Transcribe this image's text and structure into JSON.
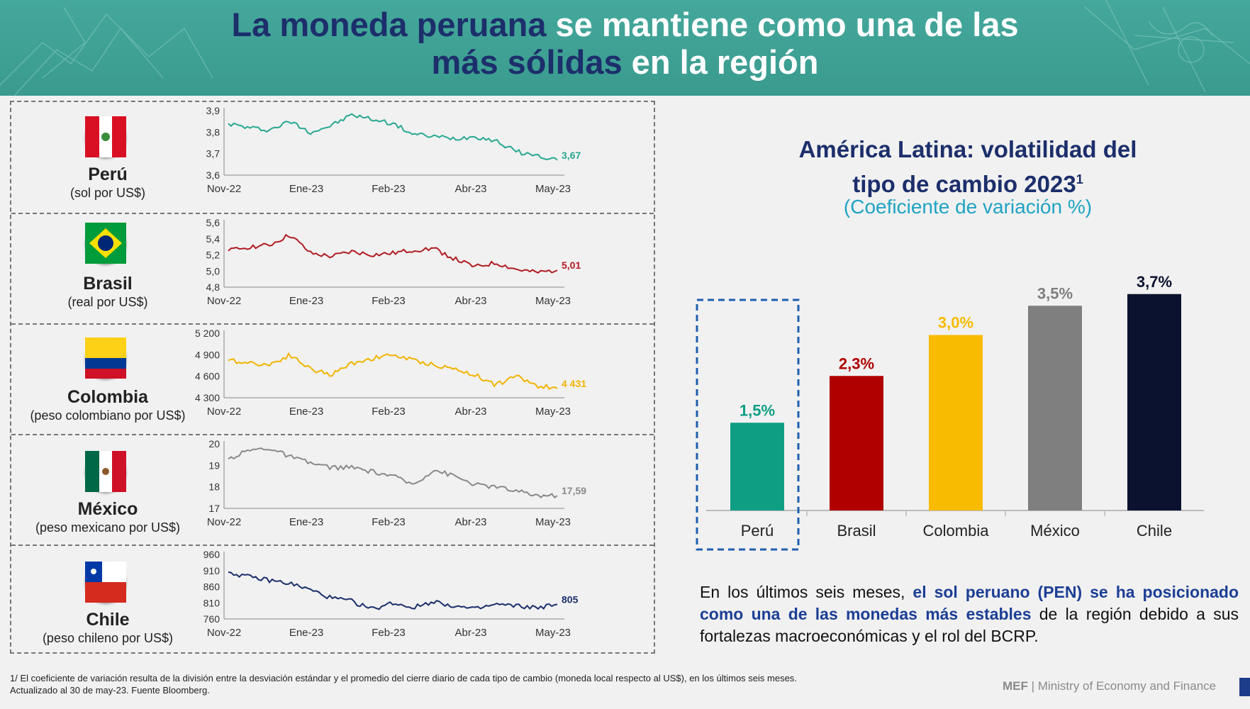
{
  "title": {
    "line1_dark": "La moneda peruana",
    "line1_light": " se mantiene como una de las",
    "line2_dark": "más sólidas",
    "line2_light": " en la región"
  },
  "countries": [
    {
      "name": "Perú",
      "unit": "(sol por US$)",
      "name_color": "#c00000",
      "line_color": "#2aa891",
      "label_color": "#2aa891",
      "flag": "peru-flag",
      "yticks": [
        "3,9",
        "3,8",
        "3,7",
        "3,6"
      ],
      "ytick_values": [
        3.9,
        3.8,
        3.7,
        3.6
      ],
      "xticks": [
        "Nov-22",
        "Ene-23",
        "Feb-23",
        "Abr-23",
        "May-23"
      ],
      "end_label": "3,67",
      "end_value": 3.67
    },
    {
      "name": "Brasil",
      "unit": "(real por US$)",
      "name_color": "#111111",
      "line_color": "#b01c22",
      "label_color": "#b01c22",
      "flag": "brazil-flag",
      "yticks": [
        "5,6",
        "5,4",
        "5,2",
        "5,0",
        "4,8"
      ],
      "ytick_values": [
        5.6,
        5.4,
        5.2,
        5.0,
        4.8
      ],
      "xticks": [
        "Nov-22",
        "Ene-23",
        "Feb-23",
        "Abr-23",
        "May-23"
      ],
      "end_label": "5,01",
      "end_value": 5.01
    },
    {
      "name": "Colombia",
      "unit": "(peso colombiano por US$)",
      "name_color": "#111111",
      "line_color": "#f0b400",
      "label_color": "#f0b400",
      "flag": "colombia-flag",
      "yticks": [
        "5 200",
        "4 900",
        "4 600",
        "4 300"
      ],
      "ytick_values": [
        5200,
        4900,
        4600,
        4300
      ],
      "xticks": [
        "Nov-22",
        "Ene-23",
        "Feb-23",
        "Abr-23",
        "May-23"
      ],
      "end_label": "4 431",
      "end_value": 4431
    },
    {
      "name": "México",
      "unit": "(peso mexicano por US$)",
      "name_color": "#111111",
      "line_color": "#8a8a8a",
      "label_color": "#8a8a8a",
      "flag": "mexico-flag",
      "yticks": [
        "20",
        "19",
        "18",
        "17"
      ],
      "ytick_values": [
        20,
        19,
        18,
        17
      ],
      "xticks": [
        "Nov-22",
        "Ene-23",
        "Feb-23",
        "Abr-23",
        "May-23"
      ],
      "end_label": "17,59",
      "end_value": 17.59
    },
    {
      "name": "Chile",
      "unit": "(peso chileno por US$)",
      "name_color": "#111111",
      "line_color": "#1c2f6b",
      "label_color": "#1c2f6b",
      "flag": "chile-flag",
      "yticks": [
        "960",
        "910",
        "860",
        "810",
        "760"
      ],
      "ytick_values": [
        960,
        910,
        860,
        810,
        760
      ],
      "xticks": [
        "Nov-22",
        "Ene-23",
        "Feb-23",
        "Abr-23",
        "May-23"
      ],
      "end_label": "805",
      "end_value": 805
    }
  ],
  "bar_title": {
    "line1": "América Latina: volatilidad del",
    "line2": "tipo de cambio 2023",
    "sup": "1",
    "subtitle": "(Coeficiente de variación %)"
  },
  "chart_data": [
    {
      "type": "line",
      "title": "Perú (sol por US$)",
      "series": [
        {
          "name": "Perú",
          "values": [
            3.84,
            3.82,
            3.81,
            3.85,
            3.8,
            3.83,
            3.88,
            3.86,
            3.84,
            3.79,
            3.78,
            3.77,
            3.78,
            3.76,
            3.71,
            3.69,
            3.67
          ]
        }
      ],
      "ylim": [
        3.6,
        3.9
      ]
    },
    {
      "type": "line",
      "title": "Brasil (real por US$)",
      "series": [
        {
          "name": "Brasil",
          "values": [
            5.25,
            5.3,
            5.32,
            5.45,
            5.22,
            5.18,
            5.24,
            5.2,
            5.22,
            5.26,
            5.28,
            5.15,
            5.05,
            5.1,
            5.02,
            4.98,
            5.01
          ]
        }
      ],
      "ylim": [
        4.8,
        5.6
      ]
    },
    {
      "type": "line",
      "title": "Colombia (peso colombiano por US$)",
      "series": [
        {
          "name": "Colombia",
          "values": [
            4820,
            4790,
            4760,
            4900,
            4700,
            4620,
            4780,
            4850,
            4900,
            4820,
            4760,
            4700,
            4620,
            4480,
            4600,
            4470,
            4431
          ]
        }
      ],
      "ylim": [
        4300,
        5200
      ]
    },
    {
      "type": "line",
      "title": "México (peso mexicano por US$)",
      "series": [
        {
          "name": "México",
          "values": [
            19.3,
            19.7,
            19.8,
            19.4,
            19.1,
            18.9,
            18.9,
            18.7,
            18.5,
            18.1,
            18.8,
            18.5,
            18.1,
            18.0,
            17.8,
            17.6,
            17.59
          ]
        }
      ],
      "ylim": [
        17,
        20
      ]
    },
    {
      "type": "line",
      "title": "Chile (peso chileno por US$)",
      "series": [
        {
          "name": "Chile",
          "values": [
            905,
            890,
            880,
            870,
            850,
            825,
            815,
            790,
            810,
            795,
            815,
            800,
            790,
            805,
            800,
            795,
            805
          ]
        }
      ],
      "ylim": [
        760,
        960
      ]
    },
    {
      "type": "bar",
      "title": "América Latina: volatilidad del tipo de cambio 2023",
      "categories": [
        "Perú",
        "Brasil",
        "Colombia",
        "México",
        "Chile"
      ],
      "values": [
        1.5,
        2.3,
        3.0,
        3.5,
        3.7
      ],
      "labels": [
        "1,5%",
        "2,3%",
        "3,0%",
        "3,5%",
        "3,7%"
      ],
      "colors": [
        "#0e9e84",
        "#b00000",
        "#f8bb00",
        "#7f7f7f",
        "#0b1230"
      ],
      "ylim": [
        0,
        4
      ]
    }
  ],
  "paragraph": {
    "p1": "En los últimos seis meses, ",
    "p2": "el sol peruano (PEN) se ha posicionado como una de las monedas más estables",
    "p3": " de la región debido a sus fortalezas macroeconómicas y el rol del BCRP."
  },
  "footnote": {
    "line1": "1/ El coeficiente de variación resulta de la división entre la desviación estándar y el promedio del cierre diario de cada tipo de cambio (moneda local respecto al US$), en los últimos seis meses.",
    "line2": "Actualizado al 30 de may-23. Fuente Bloomberg."
  },
  "logo": {
    "short": "MEF",
    "full": "Ministry of Economy and Finance"
  }
}
